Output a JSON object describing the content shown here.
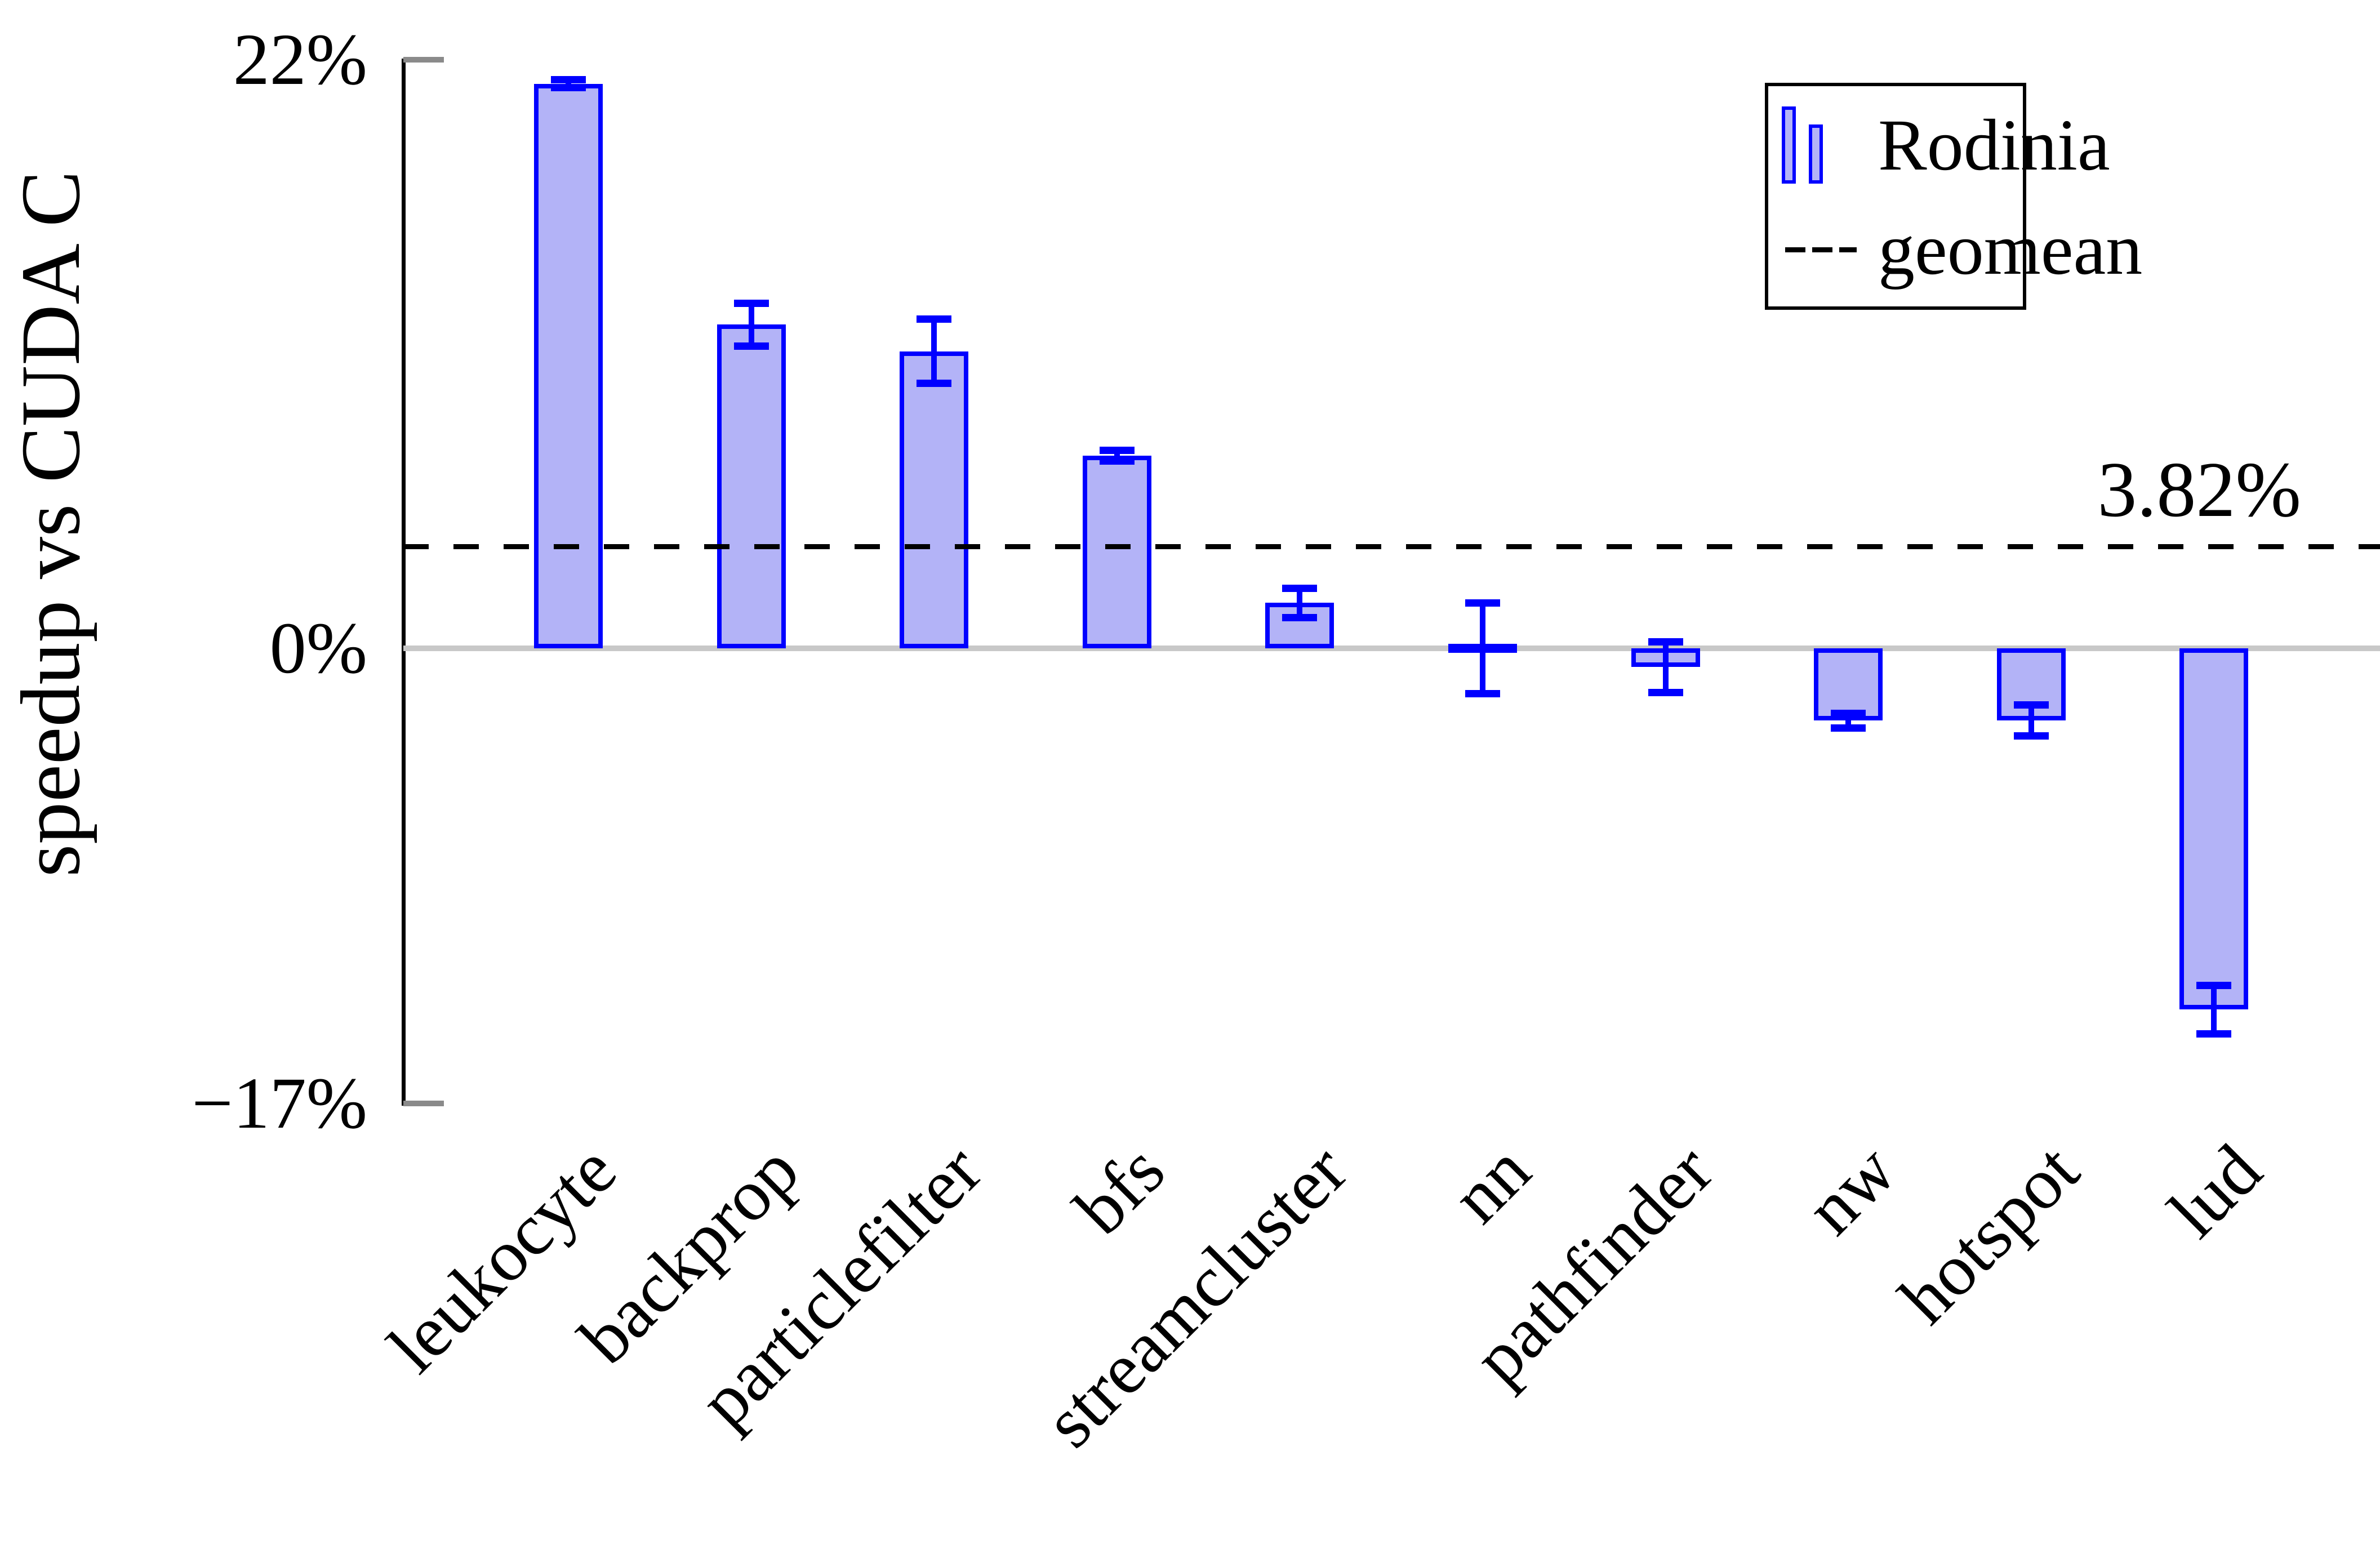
{
  "chart_data": {
    "type": "bar",
    "title": "",
    "ylabel": "speedup vs CUDA C",
    "xlabel": "",
    "categories": [
      "leukocyte",
      "backprop",
      "particlefilter",
      "bfs",
      "streamcluster",
      "nn",
      "pathfinder",
      "nw",
      "hotspot",
      "lud"
    ],
    "series": [
      {
        "name": "Rodinia",
        "values": [
          21.1,
          12.1,
          11.1,
          7.2,
          1.7,
          0.0,
          -0.7,
          -2.7,
          -2.7,
          -13.5
        ],
        "errors": [
          0.15,
          0.8,
          1.2,
          0.2,
          0.55,
          1.7,
          0.95,
          0.27,
          0.58,
          0.9
        ]
      }
    ],
    "geomean": {
      "value": 3.82,
      "label": "3.82%"
    },
    "yticks": [
      {
        "value": 22,
        "label": "22%"
      },
      {
        "value": 0,
        "label": "0%"
      },
      {
        "value": -17,
        "label": "−17%"
      }
    ],
    "ylim": [
      -17,
      22
    ],
    "grid": "off",
    "legend_position": "top-right",
    "legend": [
      {
        "icon": "bars-icon",
        "label": "Rodinia"
      },
      {
        "icon": "dashed-line-icon",
        "label": "geomean"
      }
    ],
    "colors": {
      "bar_fill": "#b3b3f7",
      "bar_border": "#0000ff",
      "zero_line": "#c8c8c8",
      "tick_gray": "#8a8a8a",
      "geomean_line": "#000000",
      "text": "#000000"
    }
  }
}
